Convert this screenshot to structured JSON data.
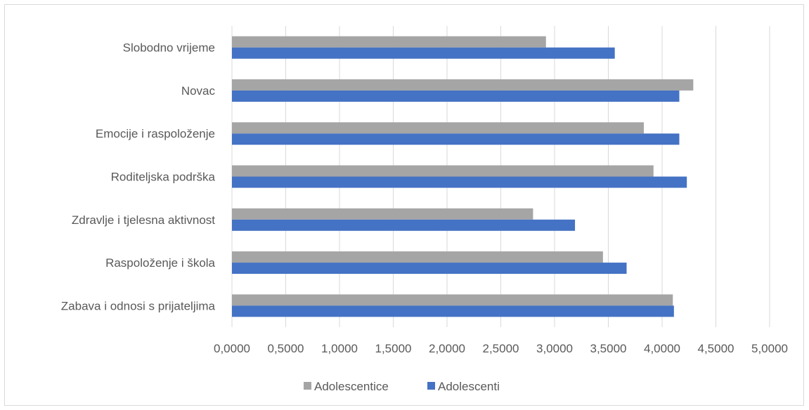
{
  "chart_data": {
    "type": "bar",
    "orientation": "horizontal",
    "categories": [
      "Slobodno vrijeme",
      "Novac",
      "Emocije i raspoloženje",
      "Roditeljska podrška",
      "Zdravlje i tjelesna aktivnost",
      "Raspoloženje i škola",
      "Zabava i odnosi s prijateljima"
    ],
    "series": [
      {
        "name": "Adolescentice",
        "color": "#a5a5a5",
        "values": [
          2.92,
          4.29,
          3.83,
          3.92,
          2.8,
          3.45,
          4.1
        ]
      },
      {
        "name": "Adolescenti",
        "color": "#4472c4",
        "values": [
          3.56,
          4.16,
          4.16,
          4.23,
          3.19,
          3.67,
          4.11
        ]
      }
    ],
    "x_ticks": [
      "0,0000",
      "0,5000",
      "1,0000",
      "1,5000",
      "2,0000",
      "2,5000",
      "3,0000",
      "3,5000",
      "4,0000",
      "4,5000",
      "5,0000"
    ],
    "xlim": [
      0,
      5
    ],
    "grid": true,
    "legend_position": "bottom"
  }
}
